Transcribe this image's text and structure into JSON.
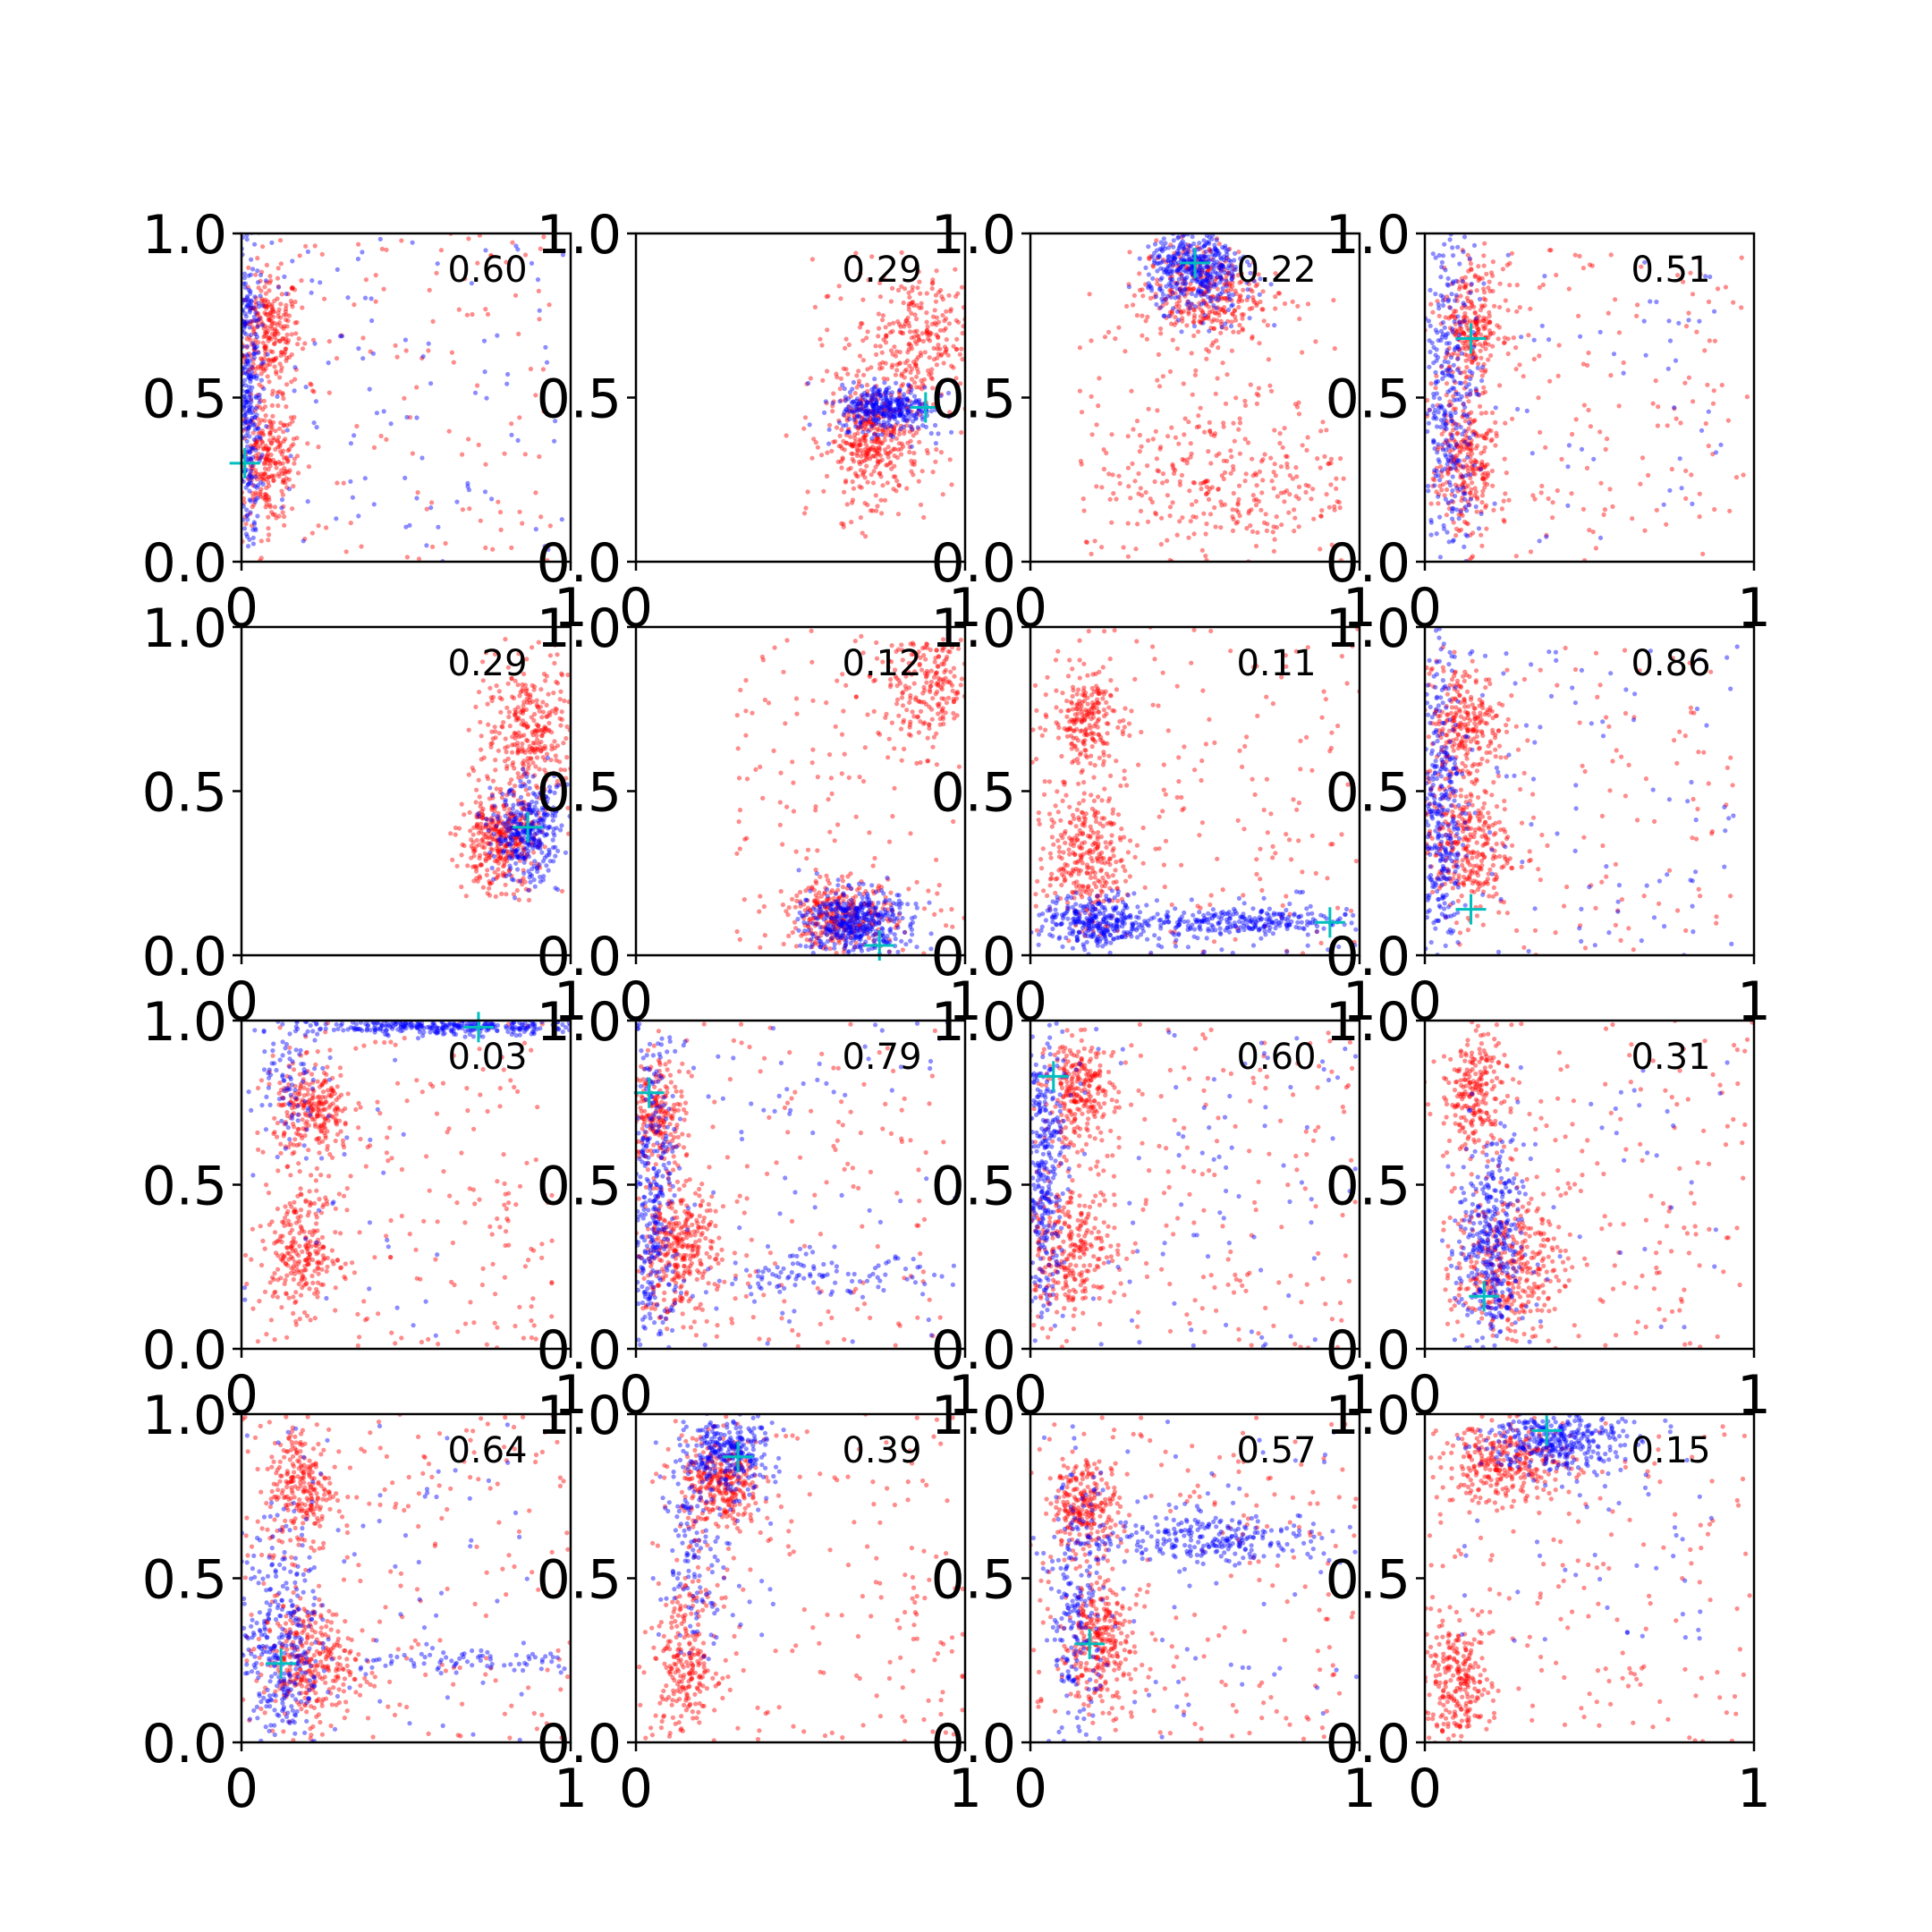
{
  "figure": {
    "background": "#ffffff",
    "blue_color": "#0000ff",
    "red_color": "#ff0000",
    "marker_color": "#00bfbf"
  },
  "chart_data": [
    {
      "type": "scatter",
      "score": "0.60",
      "xlim": [
        0,
        1
      ],
      "ylim": [
        0,
        1
      ],
      "xticks": [
        "0",
        "1"
      ],
      "yticks": [
        "0.0",
        "0.5",
        "1.0"
      ],
      "marker": [
        0.01,
        0.3
      ],
      "red_clusters": [
        {
          "x": 0.08,
          "y": 0.7,
          "sx": 0.05,
          "sy": 0.09,
          "n": 260
        },
        {
          "x": 0.08,
          "y": 0.3,
          "sx": 0.05,
          "sy": 0.09,
          "n": 260
        }
      ],
      "blue_clusters": [
        {
          "x": 0.02,
          "y": 0.5,
          "sx": 0.02,
          "sy": 0.28,
          "n": 320
        }
      ],
      "red_spread": {
        "x0": 0.0,
        "x1": 0.95,
        "y0": 0.0,
        "y1": 1.0,
        "n": 140
      },
      "blue_spread": {
        "x0": 0.0,
        "x1": 1.0,
        "y0": 0.0,
        "y1": 1.0,
        "n": 110
      }
    },
    {
      "type": "scatter",
      "score": "0.29",
      "xlim": [
        0,
        1
      ],
      "ylim": [
        0,
        1
      ],
      "xticks": [
        "0",
        "1"
      ],
      "yticks": [
        "0.0",
        "0.5",
        "1.0"
      ],
      "marker": [
        0.88,
        0.47
      ],
      "red_clusters": [
        {
          "x": 0.72,
          "y": 0.37,
          "sx": 0.07,
          "sy": 0.09,
          "n": 380
        },
        {
          "x": 0.85,
          "y": 0.68,
          "sx": 0.09,
          "sy": 0.1,
          "n": 260
        }
      ],
      "blue_clusters": [
        {
          "x": 0.76,
          "y": 0.47,
          "sx": 0.07,
          "sy": 0.035,
          "n": 300
        }
      ],
      "red_spread": {
        "x0": 0.5,
        "x1": 1.0,
        "y0": 0.05,
        "y1": 0.95,
        "n": 60
      },
      "blue_spread": {
        "x0": 0.55,
        "x1": 0.95,
        "y0": 0.35,
        "y1": 0.55,
        "n": 30
      }
    },
    {
      "type": "scatter",
      "score": "0.22",
      "xlim": [
        0,
        1
      ],
      "ylim": [
        0,
        1
      ],
      "xticks": [
        "0",
        "1"
      ],
      "yticks": [
        "0.0",
        "0.5",
        "1.0"
      ],
      "marker": [
        0.5,
        0.91
      ],
      "red_clusters": [
        {
          "x": 0.52,
          "y": 0.82,
          "sx": 0.09,
          "sy": 0.08,
          "n": 320
        },
        {
          "x": 0.6,
          "y": 0.25,
          "sx": 0.2,
          "sy": 0.12,
          "n": 260
        }
      ],
      "blue_clusters": [
        {
          "x": 0.5,
          "y": 0.89,
          "sx": 0.07,
          "sy": 0.06,
          "n": 380
        }
      ],
      "red_spread": {
        "x0": 0.15,
        "x1": 0.95,
        "y0": 0.0,
        "y1": 0.85,
        "n": 120
      },
      "blue_spread": {
        "x0": 0.35,
        "x1": 0.75,
        "y0": 0.7,
        "y1": 1.0,
        "n": 40
      }
    },
    {
      "type": "scatter",
      "score": "0.51",
      "xlim": [
        0,
        1
      ],
      "ylim": [
        0,
        1
      ],
      "xticks": [
        "0",
        "1"
      ],
      "yticks": [
        "0.0",
        "0.5",
        "1.0"
      ],
      "marker": [
        0.14,
        0.68
      ],
      "red_clusters": [
        {
          "x": 0.14,
          "y": 0.72,
          "sx": 0.05,
          "sy": 0.09,
          "n": 240
        },
        {
          "x": 0.12,
          "y": 0.3,
          "sx": 0.05,
          "sy": 0.12,
          "n": 260
        }
      ],
      "blue_clusters": [
        {
          "x": 0.08,
          "y": 0.5,
          "sx": 0.04,
          "sy": 0.25,
          "n": 300
        }
      ],
      "red_spread": {
        "x0": 0.1,
        "x1": 0.98,
        "y0": 0.0,
        "y1": 0.95,
        "n": 170
      },
      "blue_spread": {
        "x0": 0.0,
        "x1": 0.9,
        "y0": 0.05,
        "y1": 0.95,
        "n": 60
      }
    },
    {
      "type": "scatter",
      "score": "0.29",
      "xlim": [
        0,
        1
      ],
      "ylim": [
        0,
        1
      ],
      "xticks": [
        "0",
        "1"
      ],
      "yticks": [
        "0.0",
        "0.5",
        "1.0"
      ],
      "marker": [
        0.87,
        0.39
      ],
      "red_clusters": [
        {
          "x": 0.78,
          "y": 0.35,
          "sx": 0.06,
          "sy": 0.07,
          "n": 340
        },
        {
          "x": 0.88,
          "y": 0.68,
          "sx": 0.07,
          "sy": 0.1,
          "n": 280
        }
      ],
      "blue_clusters": [
        {
          "x": 0.87,
          "y": 0.37,
          "sx": 0.05,
          "sy": 0.07,
          "n": 300
        }
      ],
      "red_spread": {
        "x0": 0.65,
        "x1": 1.0,
        "y0": 0.15,
        "y1": 0.95,
        "n": 50
      },
      "blue_spread": {
        "x0": 0.75,
        "x1": 1.0,
        "y0": 0.2,
        "y1": 0.55,
        "n": 30
      }
    },
    {
      "type": "scatter",
      "score": "0.12",
      "xlim": [
        0,
        1
      ],
      "ylim": [
        0,
        1
      ],
      "xticks": [
        "0",
        "1"
      ],
      "yticks": [
        "0.0",
        "0.5",
        "1.0"
      ],
      "marker": [
        0.74,
        0.03
      ],
      "red_clusters": [
        {
          "x": 0.62,
          "y": 0.12,
          "sx": 0.08,
          "sy": 0.05,
          "n": 300
        },
        {
          "x": 0.88,
          "y": 0.82,
          "sx": 0.08,
          "sy": 0.08,
          "n": 200
        }
      ],
      "blue_clusters": [
        {
          "x": 0.66,
          "y": 0.1,
          "sx": 0.07,
          "sy": 0.05,
          "n": 380
        }
      ],
      "red_spread": {
        "x0": 0.3,
        "x1": 1.0,
        "y0": 0.0,
        "y1": 1.0,
        "n": 160
      },
      "blue_spread": {
        "x0": 0.5,
        "x1": 0.9,
        "y0": 0.0,
        "y1": 0.2,
        "n": 40
      }
    },
    {
      "type": "scatter",
      "score": "0.11",
      "xlim": [
        0,
        1
      ],
      "ylim": [
        0,
        1
      ],
      "xticks": [
        "0",
        "1"
      ],
      "yticks": [
        "0.0",
        "0.5",
        "1.0"
      ],
      "marker": [
        0.91,
        0.1
      ],
      "red_clusters": [
        {
          "x": 0.17,
          "y": 0.72,
          "sx": 0.05,
          "sy": 0.07,
          "n": 200
        },
        {
          "x": 0.17,
          "y": 0.3,
          "sx": 0.06,
          "sy": 0.1,
          "n": 280
        }
      ],
      "blue_clusters": [
        {
          "x": 0.2,
          "y": 0.1,
          "sx": 0.08,
          "sy": 0.04,
          "n": 260
        },
        {
          "x": 0.6,
          "y": 0.1,
          "sx": 0.18,
          "sy": 0.02,
          "n": 260
        }
      ],
      "red_spread": {
        "x0": 0.0,
        "x1": 1.0,
        "y0": 0.0,
        "y1": 1.0,
        "n": 200
      },
      "blue_spread": {
        "x0": 0.0,
        "x1": 1.0,
        "y0": 0.0,
        "y1": 0.2,
        "n": 60
      }
    },
    {
      "type": "scatter",
      "score": "0.86",
      "xlim": [
        0,
        1
      ],
      "ylim": [
        0,
        1
      ],
      "xticks": [
        "0",
        "1"
      ],
      "yticks": [
        "0.0",
        "0.5",
        "1.0"
      ],
      "marker": [
        0.14,
        0.14
      ],
      "red_clusters": [
        {
          "x": 0.12,
          "y": 0.7,
          "sx": 0.06,
          "sy": 0.09,
          "n": 260
        },
        {
          "x": 0.12,
          "y": 0.33,
          "sx": 0.07,
          "sy": 0.1,
          "n": 300
        }
      ],
      "blue_clusters": [
        {
          "x": 0.05,
          "y": 0.45,
          "sx": 0.03,
          "sy": 0.25,
          "n": 320
        }
      ],
      "red_spread": {
        "x0": 0.0,
        "x1": 0.95,
        "y0": 0.0,
        "y1": 0.95,
        "n": 120
      },
      "blue_spread": {
        "x0": 0.0,
        "x1": 0.95,
        "y0": 0.0,
        "y1": 0.95,
        "n": 100
      }
    },
    {
      "type": "scatter",
      "score": "0.03",
      "xlim": [
        0,
        1
      ],
      "ylim": [
        0,
        1
      ],
      "xticks": [
        "0",
        "1"
      ],
      "yticks": [
        "0.0",
        "0.5",
        "1.0"
      ],
      "marker": [
        0.72,
        0.98
      ],
      "red_clusters": [
        {
          "x": 0.22,
          "y": 0.72,
          "sx": 0.06,
          "sy": 0.07,
          "n": 240
        },
        {
          "x": 0.18,
          "y": 0.3,
          "sx": 0.06,
          "sy": 0.09,
          "n": 240
        }
      ],
      "blue_clusters": [
        {
          "x": 0.62,
          "y": 0.98,
          "sx": 0.2,
          "sy": 0.012,
          "n": 320
        },
        {
          "x": 0.15,
          "y": 0.85,
          "sx": 0.05,
          "sy": 0.1,
          "n": 80
        }
      ],
      "red_spread": {
        "x0": 0.05,
        "x1": 0.95,
        "y0": 0.0,
        "y1": 1.0,
        "n": 200
      },
      "blue_spread": {
        "x0": 0.0,
        "x1": 0.6,
        "y0": 0.0,
        "y1": 1.0,
        "n": 40
      }
    },
    {
      "type": "scatter",
      "score": "0.79",
      "xlim": [
        0,
        1
      ],
      "ylim": [
        0,
        1
      ],
      "xticks": [
        "0",
        "1"
      ],
      "yticks": [
        "0.0",
        "0.5",
        "1.0"
      ],
      "marker": [
        0.04,
        0.78
      ],
      "red_clusters": [
        {
          "x": 0.07,
          "y": 0.72,
          "sx": 0.04,
          "sy": 0.08,
          "n": 200
        },
        {
          "x": 0.12,
          "y": 0.3,
          "sx": 0.06,
          "sy": 0.1,
          "n": 300
        }
      ],
      "blue_clusters": [
        {
          "x": 0.05,
          "y": 0.45,
          "sx": 0.04,
          "sy": 0.28,
          "n": 360
        },
        {
          "x": 0.55,
          "y": 0.22,
          "sx": 0.18,
          "sy": 0.03,
          "n": 90
        }
      ],
      "red_spread": {
        "x0": 0.0,
        "x1": 0.95,
        "y0": 0.0,
        "y1": 1.0,
        "n": 180
      },
      "blue_spread": {
        "x0": 0.0,
        "x1": 1.0,
        "y0": 0.0,
        "y1": 1.0,
        "n": 90
      }
    },
    {
      "type": "scatter",
      "score": "0.60",
      "xlim": [
        0,
        1
      ],
      "ylim": [
        0,
        1
      ],
      "xticks": [
        "0",
        "1"
      ],
      "yticks": [
        "0.0",
        "0.5",
        "1.0"
      ],
      "marker": [
        0.07,
        0.83
      ],
      "red_clusters": [
        {
          "x": 0.15,
          "y": 0.78,
          "sx": 0.05,
          "sy": 0.08,
          "n": 240
        },
        {
          "x": 0.12,
          "y": 0.3,
          "sx": 0.07,
          "sy": 0.1,
          "n": 280
        }
      ],
      "blue_clusters": [
        {
          "x": 0.04,
          "y": 0.55,
          "sx": 0.03,
          "sy": 0.25,
          "n": 340
        }
      ],
      "red_spread": {
        "x0": 0.0,
        "x1": 1.0,
        "y0": 0.0,
        "y1": 1.0,
        "n": 200
      },
      "blue_spread": {
        "x0": 0.0,
        "x1": 1.0,
        "y0": 0.0,
        "y1": 1.0,
        "n": 90
      }
    },
    {
      "type": "scatter",
      "score": "0.31",
      "xlim": [
        0,
        1
      ],
      "ylim": [
        0,
        1
      ],
      "xticks": [
        "0",
        "1"
      ],
      "yticks": [
        "0.0",
        "0.5",
        "1.0"
      ],
      "marker": [
        0.18,
        0.16
      ],
      "red_clusters": [
        {
          "x": 0.15,
          "y": 0.78,
          "sx": 0.05,
          "sy": 0.09,
          "n": 220
        },
        {
          "x": 0.25,
          "y": 0.25,
          "sx": 0.08,
          "sy": 0.1,
          "n": 320
        }
      ],
      "blue_clusters": [
        {
          "x": 0.2,
          "y": 0.3,
          "sx": 0.05,
          "sy": 0.16,
          "n": 360
        }
      ],
      "red_spread": {
        "x0": 0.05,
        "x1": 1.0,
        "y0": 0.0,
        "y1": 1.0,
        "n": 200
      },
      "blue_spread": {
        "x0": 0.05,
        "x1": 1.0,
        "y0": 0.0,
        "y1": 0.9,
        "n": 40
      }
    },
    {
      "type": "scatter",
      "score": "0.64",
      "xlim": [
        0,
        1
      ],
      "ylim": [
        0,
        1
      ],
      "xticks": [
        "0",
        "1"
      ],
      "yticks": [
        "0.0",
        "0.5",
        "1.0"
      ],
      "marker": [
        0.12,
        0.24
      ],
      "red_clusters": [
        {
          "x": 0.18,
          "y": 0.78,
          "sx": 0.05,
          "sy": 0.1,
          "n": 240
        },
        {
          "x": 0.2,
          "y": 0.25,
          "sx": 0.07,
          "sy": 0.09,
          "n": 300
        }
      ],
      "blue_clusters": [
        {
          "x": 0.12,
          "y": 0.3,
          "sx": 0.06,
          "sy": 0.18,
          "n": 300
        },
        {
          "x": 0.65,
          "y": 0.25,
          "sx": 0.2,
          "sy": 0.02,
          "n": 80
        }
      ],
      "red_spread": {
        "x0": 0.0,
        "x1": 1.0,
        "y0": 0.0,
        "y1": 1.0,
        "n": 200
      },
      "blue_spread": {
        "x0": 0.0,
        "x1": 0.9,
        "y0": 0.0,
        "y1": 1.0,
        "n": 80
      }
    },
    {
      "type": "scatter",
      "score": "0.39",
      "xlim": [
        0,
        1
      ],
      "ylim": [
        0,
        1
      ],
      "xticks": [
        "0",
        "1"
      ],
      "yticks": [
        "0.0",
        "0.5",
        "1.0"
      ],
      "marker": [
        0.31,
        0.87
      ],
      "red_clusters": [
        {
          "x": 0.26,
          "y": 0.78,
          "sx": 0.06,
          "sy": 0.07,
          "n": 300
        },
        {
          "x": 0.15,
          "y": 0.25,
          "sx": 0.05,
          "sy": 0.12,
          "n": 240
        }
      ],
      "blue_clusters": [
        {
          "x": 0.28,
          "y": 0.88,
          "sx": 0.06,
          "sy": 0.06,
          "n": 260
        },
        {
          "x": 0.18,
          "y": 0.6,
          "sx": 0.05,
          "sy": 0.15,
          "n": 120
        }
      ],
      "red_spread": {
        "x0": 0.05,
        "x1": 1.0,
        "y0": 0.0,
        "y1": 1.0,
        "n": 180
      },
      "blue_spread": {
        "x0": 0.05,
        "x1": 0.45,
        "y0": 0.3,
        "y1": 1.0,
        "n": 40
      }
    },
    {
      "type": "scatter",
      "score": "0.57",
      "xlim": [
        0,
        1
      ],
      "ylim": [
        0,
        1
      ],
      "xticks": [
        "0",
        "1"
      ],
      "yticks": [
        "0.0",
        "0.5",
        "1.0"
      ],
      "marker": [
        0.18,
        0.3
      ],
      "red_clusters": [
        {
          "x": 0.17,
          "y": 0.72,
          "sx": 0.05,
          "sy": 0.07,
          "n": 240
        },
        {
          "x": 0.2,
          "y": 0.3,
          "sx": 0.05,
          "sy": 0.09,
          "n": 260
        }
      ],
      "blue_clusters": [
        {
          "x": 0.55,
          "y": 0.62,
          "sx": 0.2,
          "sy": 0.04,
          "n": 260
        },
        {
          "x": 0.14,
          "y": 0.4,
          "sx": 0.04,
          "sy": 0.2,
          "n": 200
        }
      ],
      "red_spread": {
        "x0": 0.0,
        "x1": 1.0,
        "y0": 0.0,
        "y1": 1.0,
        "n": 220
      },
      "blue_spread": {
        "x0": 0.0,
        "x1": 1.0,
        "y0": 0.0,
        "y1": 1.0,
        "n": 60
      }
    },
    {
      "type": "scatter",
      "score": "0.15",
      "xlim": [
        0,
        1
      ],
      "ylim": [
        0,
        1
      ],
      "xticks": [
        "0",
        "1"
      ],
      "yticks": [
        "0.0",
        "0.5",
        "1.0"
      ],
      "marker": [
        0.37,
        0.95
      ],
      "red_clusters": [
        {
          "x": 0.25,
          "y": 0.85,
          "sx": 0.1,
          "sy": 0.06,
          "n": 300
        },
        {
          "x": 0.1,
          "y": 0.18,
          "sx": 0.05,
          "sy": 0.09,
          "n": 240
        }
      ],
      "blue_clusters": [
        {
          "x": 0.4,
          "y": 0.92,
          "sx": 0.1,
          "sy": 0.05,
          "n": 340
        }
      ],
      "red_spread": {
        "x0": 0.0,
        "x1": 1.0,
        "y0": 0.0,
        "y1": 1.0,
        "n": 170
      },
      "blue_spread": {
        "x0": 0.1,
        "x1": 0.9,
        "y0": 0.3,
        "y1": 1.0,
        "n": 50
      }
    }
  ]
}
